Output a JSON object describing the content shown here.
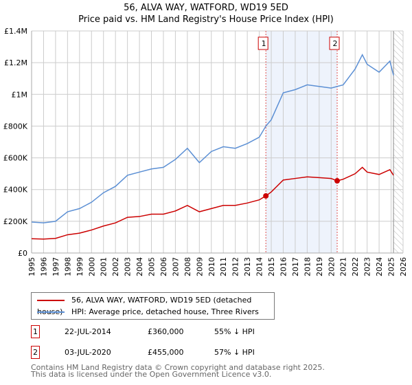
{
  "title": "56, ALVA WAY, WATFORD, WD19 5ED",
  "subtitle": "Price paid vs. HM Land Registry's House Price Index (HPI)",
  "chart_data": {
    "type": "line",
    "title": "56, ALVA WAY, WATFORD, WD19 5ED - Price paid vs. HM Land Registry's House Price Index (HPI)",
    "xlim": [
      1995,
      2026
    ],
    "ylim": [
      0,
      1400000
    ],
    "yticks": [
      {
        "v": 0,
        "label": "£0"
      },
      {
        "v": 200000,
        "label": "£200K"
      },
      {
        "v": 400000,
        "label": "£400K"
      },
      {
        "v": 600000,
        "label": "£600K"
      },
      {
        "v": 800000,
        "label": "£800K"
      },
      {
        "v": 1000000,
        "label": "£1M"
      },
      {
        "v": 1200000,
        "label": "£1.2M"
      },
      {
        "v": 1400000,
        "label": "£1.4M"
      }
    ],
    "xticks": [
      "1995",
      "1996",
      "1997",
      "1998",
      "1999",
      "2000",
      "2001",
      "2002",
      "2003",
      "2004",
      "2005",
      "2006",
      "2007",
      "2008",
      "2009",
      "2010",
      "2011",
      "2012",
      "2013",
      "2014",
      "2015",
      "2016",
      "2017",
      "2018",
      "2019",
      "2020",
      "2021",
      "2022",
      "2023",
      "2024",
      "2025",
      "2026"
    ],
    "x": [
      1995,
      1996,
      1997,
      1998,
      1999,
      2000,
      2001,
      2002,
      2003,
      2004,
      2005,
      2006,
      2007,
      2008,
      2009,
      2010,
      2011,
      2012,
      2013,
      2014,
      2014.55,
      2015,
      2016,
      2017,
      2018,
      2019,
      2020,
      2020.5,
      2021,
      2022,
      2022.6,
      2023,
      2024,
      2024.9,
      2025.2
    ],
    "series": [
      {
        "name": "56, ALVA WAY, WATFORD, WD19 5ED (detached house)",
        "color": "#cc0000",
        "values": [
          90000,
          88000,
          92000,
          115000,
          125000,
          145000,
          170000,
          190000,
          225000,
          230000,
          245000,
          245000,
          265000,
          300000,
          260000,
          280000,
          300000,
          300000,
          315000,
          335000,
          360000,
          385000,
          460000,
          470000,
          480000,
          475000,
          470000,
          455000,
          465000,
          500000,
          540000,
          510000,
          495000,
          525000,
          490000
        ]
      },
      {
        "name": "HPI: Average price, detached house, Three Rivers",
        "color": "#5b8fd4",
        "values": [
          195000,
          190000,
          200000,
          260000,
          280000,
          320000,
          380000,
          420000,
          490000,
          510000,
          530000,
          540000,
          590000,
          660000,
          570000,
          640000,
          670000,
          660000,
          690000,
          730000,
          800000,
          840000,
          1010000,
          1030000,
          1060000,
          1050000,
          1040000,
          1050000,
          1060000,
          1160000,
          1250000,
          1190000,
          1140000,
          1210000,
          1120000
        ]
      }
    ],
    "shaded_range": [
      2014.55,
      2020.5
    ],
    "forecast_hatch_from": 2025.2,
    "annotations": [
      {
        "label": "1",
        "x": 2014.55,
        "y": 360000
      },
      {
        "label": "2",
        "x": 2020.5,
        "y": 455000
      }
    ],
    "legend_position": "below"
  },
  "sales": [
    {
      "num": "1",
      "date": "22-JUL-2014",
      "price": "£360,000",
      "hpi": "55% ↓ HPI"
    },
    {
      "num": "2",
      "date": "03-JUL-2020",
      "price": "£455,000",
      "hpi": "57% ↓ HPI"
    }
  ],
  "footer": [
    "Contains HM Land Registry data © Crown copyright and database right 2025.",
    "This data is licensed under the Open Government Licence v3.0."
  ]
}
